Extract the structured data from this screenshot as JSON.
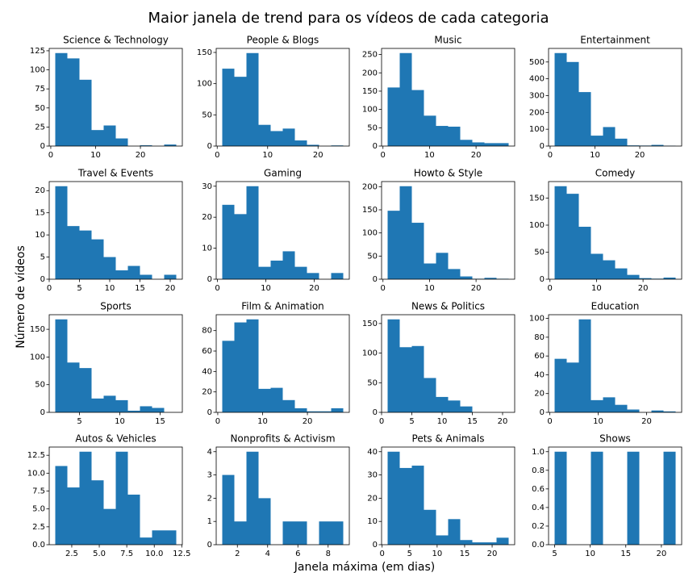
{
  "figure": {
    "title": "Maior janela de trend para os vídeos de cada categoria",
    "xlabel": "Janela máxima (em dias)",
    "ylabel": "Número de vídeos"
  },
  "chart_data": [
    {
      "type": "histogram",
      "title": "Science & Technology",
      "color": "#1f77b4",
      "bins": [
        1,
        3.7,
        6.4,
        9.1,
        11.8,
        14.5,
        17.2,
        19.9,
        22.6,
        25.3,
        28
      ],
      "values": [
        122,
        115,
        87,
        21,
        27,
        10,
        0,
        1,
        0,
        2
      ],
      "xlim": [
        -0.35,
        29.35
      ],
      "ylim": [
        0,
        128.1
      ],
      "xticks": [
        0,
        10,
        20
      ],
      "yticks": [
        0,
        25,
        50,
        75,
        100,
        125
      ]
    },
    {
      "type": "histogram",
      "title": "People & Blogs",
      "color": "#1f77b4",
      "bins": [
        1,
        3.4,
        5.8,
        8.2,
        10.6,
        13,
        15.4,
        17.8,
        20.2,
        22.6,
        25
      ],
      "values": [
        124,
        111,
        149,
        34,
        24,
        28,
        9,
        2,
        0,
        1
      ],
      "xlim": [
        -0.2,
        26.2
      ],
      "ylim": [
        0,
        156.45
      ],
      "xticks": [
        0,
        10,
        20
      ],
      "yticks": [
        0,
        50,
        100,
        150
      ]
    },
    {
      "type": "histogram",
      "title": "Music",
      "color": "#1f77b4",
      "bins": [
        1,
        3.6,
        6.2,
        8.8,
        11.4,
        14,
        16.6,
        19.2,
        21.8,
        24.4,
        27
      ],
      "values": [
        160,
        254,
        153,
        83,
        55,
        53,
        17,
        10,
        8,
        8
      ],
      "xlim": [
        -0.3,
        28.3
      ],
      "ylim": [
        0,
        266.7
      ],
      "xticks": [
        0,
        10,
        20
      ],
      "yticks": [
        0,
        50,
        100,
        150,
        200,
        250
      ]
    },
    {
      "type": "histogram",
      "title": "Entertainment",
      "color": "#1f77b4",
      "bins": [
        1,
        3.7,
        6.4,
        9.1,
        11.8,
        14.5,
        17.2,
        19.9,
        22.6,
        25.3,
        28
      ],
      "values": [
        553,
        500,
        321,
        62,
        113,
        44,
        4,
        3,
        7,
        2
      ],
      "xlim": [
        -0.35,
        29.35
      ],
      "ylim": [
        0,
        580.65
      ],
      "xticks": [
        0,
        10,
        20
      ],
      "yticks": [
        0,
        100,
        200,
        300,
        400,
        500
      ]
    },
    {
      "type": "histogram",
      "title": "Travel & Events",
      "color": "#1f77b4",
      "bins": [
        1,
        3,
        5,
        7,
        9,
        11,
        13,
        15,
        17,
        19,
        21
      ],
      "values": [
        21,
        12,
        11,
        9,
        5,
        2,
        3,
        1,
        0,
        1
      ],
      "xlim": [
        0,
        22
      ],
      "ylim": [
        0,
        22.05
      ],
      "xticks": [
        0,
        5,
        10,
        15,
        20
      ],
      "yticks": [
        0,
        5,
        10,
        15,
        20
      ]
    },
    {
      "type": "histogram",
      "title": "Gaming",
      "color": "#1f77b4",
      "bins": [
        1,
        3.5,
        6,
        8.5,
        11,
        13.5,
        16,
        18.5,
        21,
        23.5,
        26
      ],
      "values": [
        24,
        21,
        30,
        4,
        6,
        9,
        4,
        2,
        0,
        2
      ],
      "xlim": [
        -0.25,
        27.25
      ],
      "ylim": [
        0,
        31.5
      ],
      "xticks": [
        0,
        10,
        20
      ],
      "yticks": [
        0,
        10,
        20,
        30
      ]
    },
    {
      "type": "histogram",
      "title": "Howto & Style",
      "color": "#1f77b4",
      "bins": [
        1,
        3.6,
        6.2,
        8.8,
        11.4,
        14,
        16.6,
        19.2,
        21.8,
        24.4,
        27
      ],
      "values": [
        148,
        201,
        122,
        34,
        57,
        22,
        6,
        1,
        3,
        1
      ],
      "xlim": [
        -0.3,
        28.3
      ],
      "ylim": [
        0,
        211.05
      ],
      "xticks": [
        0,
        10,
        20
      ],
      "yticks": [
        0,
        50,
        100,
        150,
        200
      ]
    },
    {
      "type": "histogram",
      "title": "Comedy",
      "color": "#1f77b4",
      "bins": [
        1,
        3.6,
        6.2,
        8.8,
        11.4,
        14,
        16.6,
        19.2,
        21.8,
        24.4,
        27
      ],
      "values": [
        172,
        158,
        97,
        47,
        35,
        20,
        8,
        2,
        1,
        3
      ],
      "xlim": [
        -0.3,
        28.3
      ],
      "ylim": [
        0,
        180.6
      ],
      "xticks": [
        0,
        10,
        20
      ],
      "yticks": [
        0,
        50,
        100,
        150
      ]
    },
    {
      "type": "histogram",
      "title": "Sports",
      "color": "#1f77b4",
      "bins": [
        2,
        3.5,
        5,
        6.5,
        8,
        9.5,
        11,
        12.5,
        14,
        15.5,
        17
      ],
      "values": [
        168,
        90,
        80,
        25,
        30,
        22,
        3,
        11,
        8,
        0
      ],
      "xlim": [
        1.25,
        17.75
      ],
      "ylim": [
        0,
        176.4
      ],
      "xticks": [
        5,
        10,
        15
      ],
      "yticks": [
        0,
        50,
        100,
        150
      ]
    },
    {
      "type": "histogram",
      "title": "Film & Animation",
      "color": "#1f77b4",
      "bins": [
        1,
        3.7,
        6.4,
        9.1,
        11.8,
        14.5,
        17.2,
        19.9,
        22.6,
        25.3,
        28
      ],
      "values": [
        70,
        88,
        91,
        23,
        24,
        12,
        4,
        1,
        1,
        4
      ],
      "xlim": [
        -0.35,
        29.35
      ],
      "ylim": [
        0,
        95.55
      ],
      "xticks": [
        0,
        10,
        20
      ],
      "yticks": [
        0,
        20,
        40,
        60,
        80
      ]
    },
    {
      "type": "histogram",
      "title": "News & Politics",
      "color": "#1f77b4",
      "bins": [
        1,
        3,
        5,
        7,
        9,
        11,
        13,
        15,
        17,
        19,
        21
      ],
      "values": [
        157,
        110,
        112,
        58,
        26,
        20,
        10,
        0,
        0,
        0
      ],
      "xlim": [
        0,
        22
      ],
      "ylim": [
        0,
        164.85
      ],
      "xticks": [
        0,
        5,
        10,
        15,
        20
      ],
      "yticks": [
        0,
        50,
        100,
        150
      ]
    },
    {
      "type": "histogram",
      "title": "Education",
      "color": "#1f77b4",
      "bins": [
        1,
        3.5,
        6,
        8.5,
        11,
        13.5,
        16,
        18.5,
        21,
        23.5,
        26
      ],
      "values": [
        57,
        53,
        99,
        13,
        16,
        8,
        3,
        0,
        2,
        1
      ],
      "xlim": [
        -0.25,
        27.25
      ],
      "ylim": [
        0,
        103.95
      ],
      "xticks": [
        0,
        10,
        20
      ],
      "yticks": [
        0,
        20,
        40,
        60,
        80,
        100
      ]
    },
    {
      "type": "histogram",
      "title": "Autos & Vehicles",
      "color": "#1f77b4",
      "bins": [
        1,
        2.1,
        3.2,
        4.3,
        5.4,
        6.5,
        7.6,
        8.7,
        9.8,
        10.9,
        12
      ],
      "values": [
        11,
        8,
        13,
        9,
        5,
        13,
        7,
        1,
        2,
        2
      ],
      "xlim": [
        0.45,
        12.55
      ],
      "ylim": [
        0,
        13.65
      ],
      "xticks": [
        2.5,
        {
          "value": 5,
          "label": "5.0"
        },
        7.5,
        {
          "value": 10,
          "label": "10.0"
        },
        12.5
      ],
      "yticks": [
        {
          "value": 0,
          "label": "0.0"
        },
        2.5,
        {
          "value": 5,
          "label": "5.0"
        },
        7.5,
        {
          "value": 10,
          "label": "10.0"
        },
        12.5
      ]
    },
    {
      "type": "histogram",
      "title": "Nonprofits & Activism",
      "color": "#1f77b4",
      "bins": [
        1,
        1.8,
        2.6,
        3.4,
        4.2,
        5,
        5.8,
        6.6,
        7.4,
        8.2,
        9
      ],
      "values": [
        3,
        1,
        4,
        2,
        0,
        1,
        1,
        0,
        1,
        1
      ],
      "xlim": [
        0.6,
        9.4
      ],
      "ylim": [
        0,
        4.2
      ],
      "xticks": [
        2,
        4,
        6,
        8
      ],
      "yticks": [
        0,
        1,
        2,
        3,
        4
      ]
    },
    {
      "type": "histogram",
      "title": "Pets & Animals",
      "color": "#1f77b4",
      "bins": [
        1,
        3.2,
        5.4,
        7.6,
        9.8,
        12,
        14.2,
        16.4,
        18.6,
        20.8,
        23
      ],
      "values": [
        40,
        33,
        34,
        15,
        4,
        11,
        2,
        1,
        1,
        3
      ],
      "xlim": [
        -0.1,
        24.1
      ],
      "ylim": [
        0,
        42
      ],
      "xticks": [
        0,
        5,
        10,
        15,
        20
      ],
      "yticks": [
        0,
        10,
        20,
        30,
        40
      ]
    },
    {
      "type": "histogram",
      "title": "Shows",
      "color": "#1f77b4",
      "bins": [
        5,
        6.7,
        8.4,
        10.1,
        11.8,
        13.5,
        15.2,
        16.9,
        18.6,
        20.3,
        22
      ],
      "values": [
        1,
        0,
        0,
        1,
        0,
        0,
        1,
        0,
        0,
        1
      ],
      "xlim": [
        4.15,
        22.85
      ],
      "ylim": [
        0,
        1.05
      ],
      "xticks": [
        5,
        10,
        15,
        20
      ],
      "yticks": [
        {
          "value": 0,
          "label": "0.0"
        },
        0.2,
        0.4,
        0.6,
        0.8,
        {
          "value": 1,
          "label": "1.0"
        }
      ]
    }
  ]
}
